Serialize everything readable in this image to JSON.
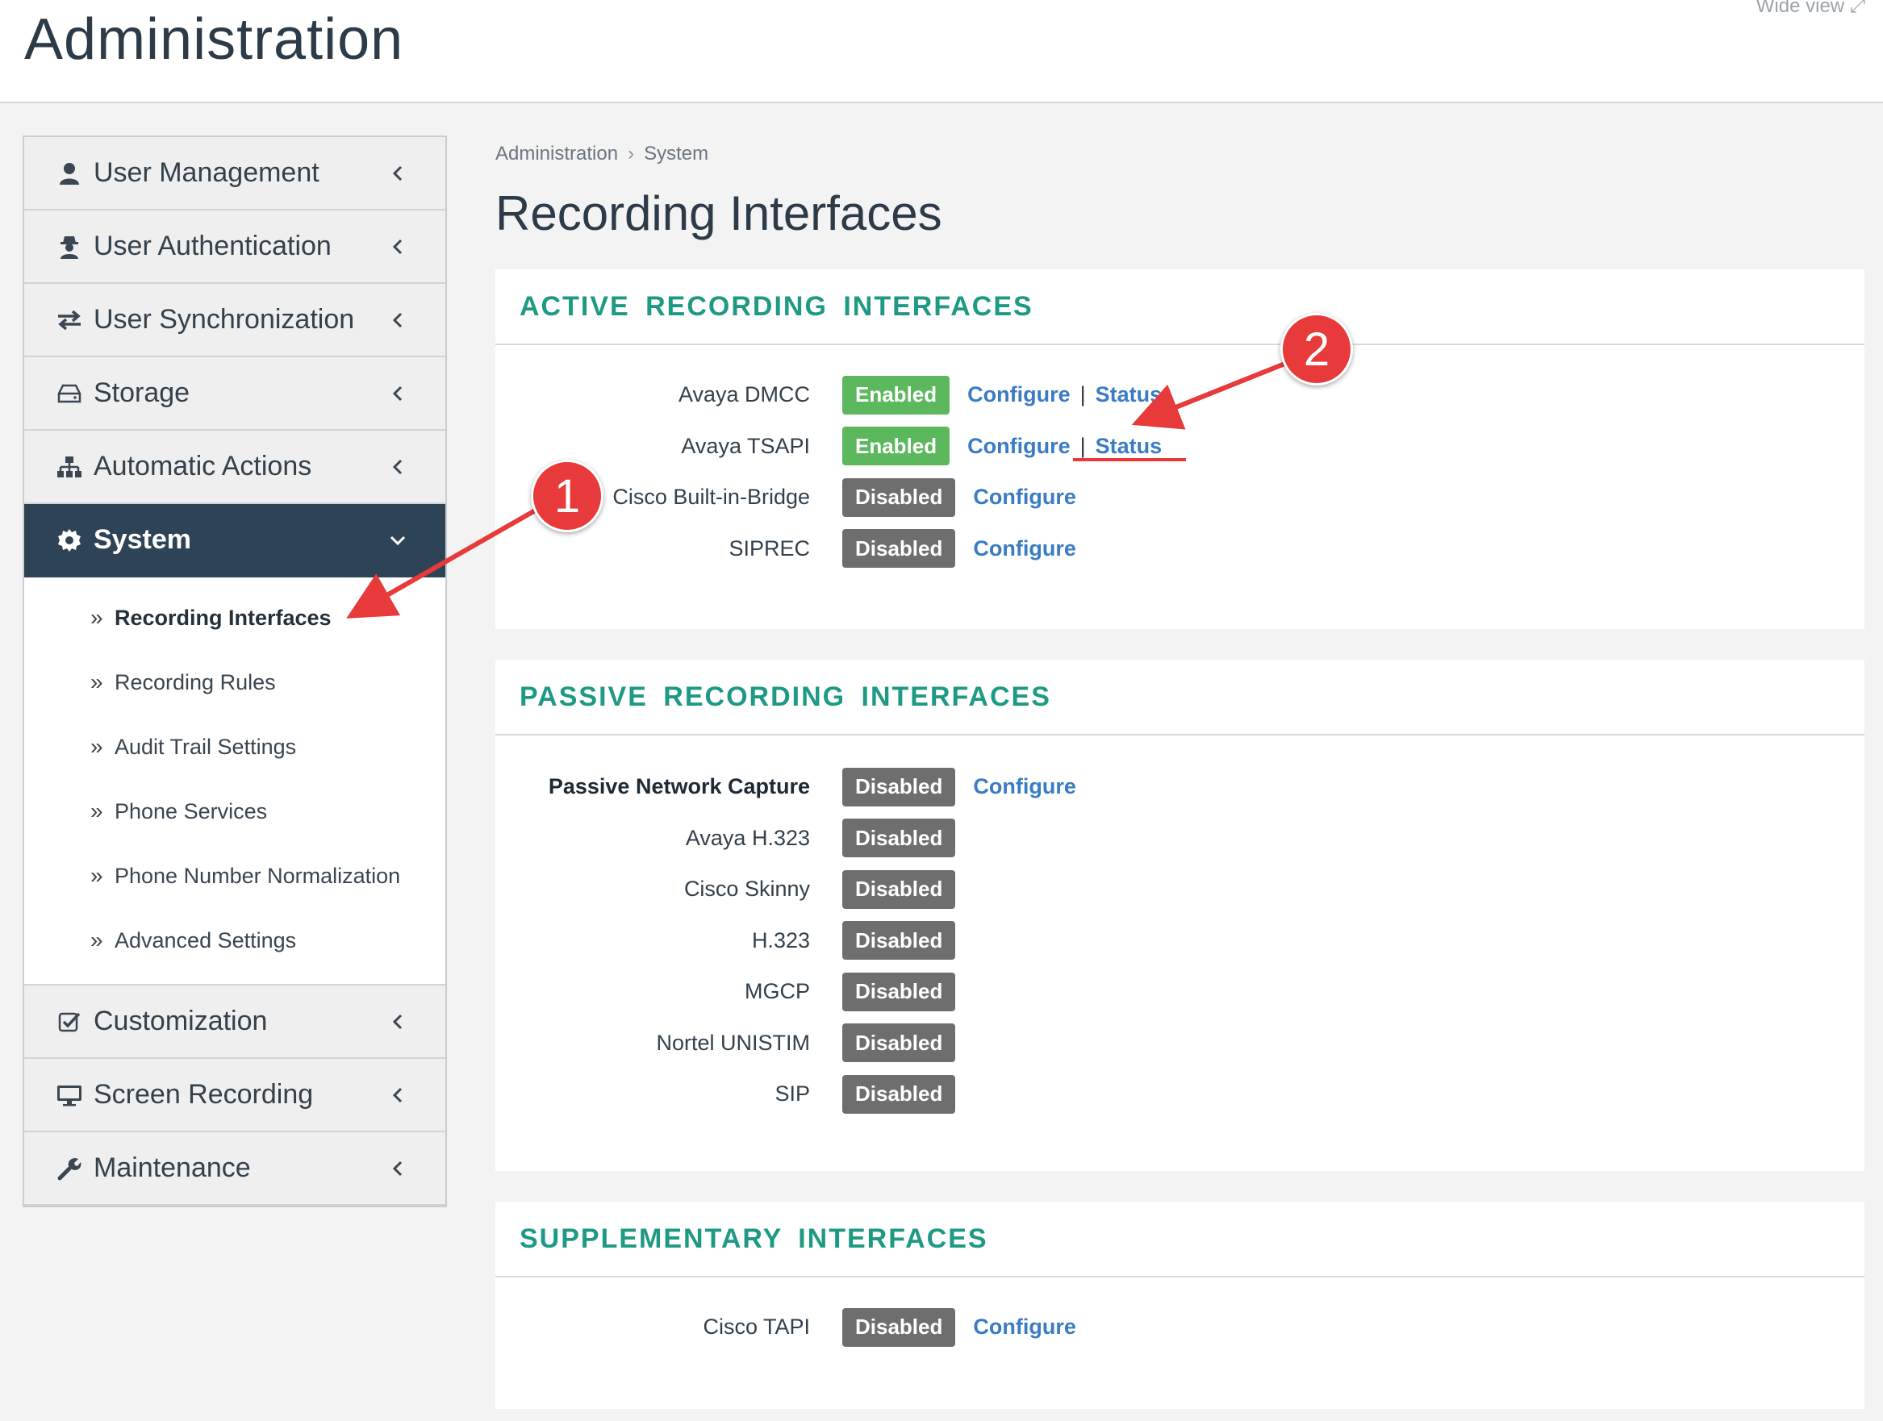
{
  "header": {
    "title": "Administration",
    "wide_view": "Wide view"
  },
  "sidebar": {
    "items": [
      {
        "label": "User Management",
        "icon": "user-icon"
      },
      {
        "label": "User Authentication",
        "icon": "user-secret-icon"
      },
      {
        "label": "User Synchronization",
        "icon": "exchange-icon"
      },
      {
        "label": "Storage",
        "icon": "hdd-icon"
      },
      {
        "label": "Automatic Actions",
        "icon": "sitemap-icon"
      },
      {
        "label": "System",
        "icon": "gear-icon",
        "expanded": true
      },
      {
        "label": "Customization",
        "icon": "checkbox-icon"
      },
      {
        "label": "Screen Recording",
        "icon": "monitor-icon"
      },
      {
        "label": "Maintenance",
        "icon": "wrench-icon"
      }
    ],
    "system_subitems": [
      "Recording Interfaces",
      "Recording Rules",
      "Audit Trail Settings",
      "Phone Services",
      "Phone Number Normalization",
      "Advanced Settings"
    ],
    "current_subitem": "Recording Interfaces"
  },
  "breadcrumb": {
    "root": "Administration",
    "current": "System"
  },
  "page": {
    "title": "Recording Interfaces"
  },
  "status_labels": {
    "enabled": "Enabled",
    "disabled": "Disabled"
  },
  "link_labels": {
    "configure": "Configure",
    "status": "Status"
  },
  "sections": {
    "active": {
      "title": "ACTIVE RECORDING INTERFACES",
      "rows": [
        {
          "name": "Avaya DMCC",
          "status": "Enabled",
          "configure": "Configure",
          "status_link": "Status"
        },
        {
          "name": "Avaya TSAPI",
          "status": "Enabled",
          "configure": "Configure",
          "status_link": "Status"
        },
        {
          "name": "Cisco Built-in-Bridge",
          "status": "Disabled",
          "configure": "Configure"
        },
        {
          "name": "SIPREC",
          "status": "Disabled",
          "configure": "Configure"
        }
      ]
    },
    "passive": {
      "title": "PASSIVE RECORDING INTERFACES",
      "rows": [
        {
          "name": "Passive Network Capture",
          "status": "Disabled",
          "configure": "Configure"
        },
        {
          "name": "Avaya H.323",
          "status": "Disabled"
        },
        {
          "name": "Cisco Skinny",
          "status": "Disabled"
        },
        {
          "name": "H.323",
          "status": "Disabled"
        },
        {
          "name": "MGCP",
          "status": "Disabled"
        },
        {
          "name": "Nortel UNISTIM",
          "status": "Disabled"
        },
        {
          "name": "SIP",
          "status": "Disabled"
        }
      ]
    },
    "supplementary": {
      "title": "SUPPLEMENTARY INTERFACES",
      "rows": [
        {
          "name": "Cisco TAPI",
          "status": "Disabled",
          "configure": "Configure"
        }
      ]
    }
  },
  "annotations": {
    "marker_1": "1",
    "marker_2": "2",
    "color": "#e83a3a"
  },
  "colors": {
    "accent_teal": "#1e9a84",
    "enabled_green": "#5cb85c",
    "disabled_gray": "#6e6e6e",
    "link_blue": "#3a7cc4",
    "active_nav": "#2f4357"
  }
}
